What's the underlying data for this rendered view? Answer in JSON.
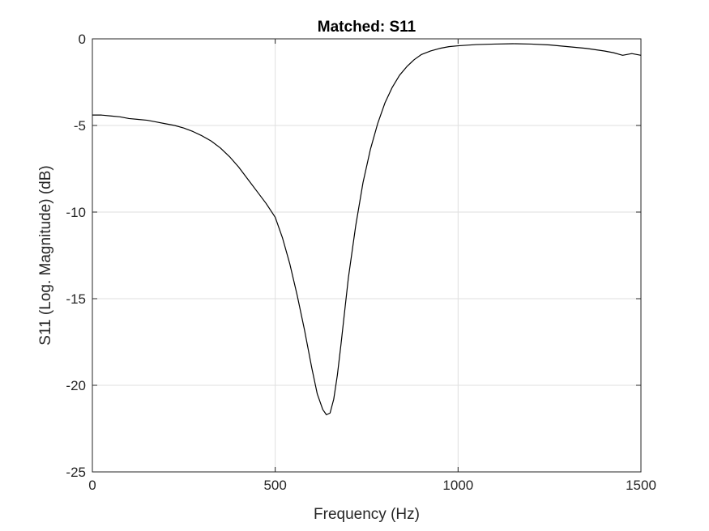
{
  "chart_data": {
    "type": "line",
    "title": "Matched: S11",
    "xlabel": "Frequency (Hz)",
    "ylabel": "S11 (Log. Magnitude) (dB)",
    "xlim": [
      0,
      1500
    ],
    "ylim": [
      -25,
      0
    ],
    "xticks": [
      0,
      500,
      1000,
      1500
    ],
    "yticks": [
      0,
      -5,
      -10,
      -15,
      -20,
      -25
    ],
    "xtick_labels": [
      "0",
      "500",
      "1000",
      "1500"
    ],
    "ytick_labels": [
      "0",
      "-5",
      "-10",
      "-15",
      "-20",
      "-25"
    ],
    "grid": true,
    "series": [
      {
        "color": "#000000",
        "x": [
          0,
          25,
          50,
          75,
          100,
          125,
          150,
          175,
          200,
          225,
          250,
          275,
          300,
          325,
          350,
          375,
          400,
          425,
          450,
          475,
          500,
          520,
          540,
          560,
          580,
          600,
          615,
          630,
          640,
          650,
          660,
          670,
          680,
          690,
          700,
          720,
          740,
          760,
          780,
          800,
          820,
          840,
          860,
          880,
          900,
          925,
          950,
          975,
          1000,
          1050,
          1100,
          1150,
          1200,
          1250,
          1300,
          1350,
          1400,
          1425,
          1450,
          1475,
          1500
        ],
        "y": [
          -4.4,
          -4.4,
          -4.45,
          -4.5,
          -4.6,
          -4.65,
          -4.7,
          -4.8,
          -4.9,
          -5.0,
          -5.15,
          -5.35,
          -5.6,
          -5.9,
          -6.3,
          -6.8,
          -7.4,
          -8.1,
          -8.8,
          -9.5,
          -10.3,
          -11.5,
          -13.0,
          -14.8,
          -16.8,
          -19.0,
          -20.5,
          -21.4,
          -21.7,
          -21.6,
          -20.8,
          -19.4,
          -17.6,
          -15.7,
          -13.8,
          -10.8,
          -8.3,
          -6.4,
          -4.9,
          -3.7,
          -2.8,
          -2.1,
          -1.6,
          -1.2,
          -0.9,
          -0.7,
          -0.55,
          -0.45,
          -0.4,
          -0.33,
          -0.3,
          -0.28,
          -0.3,
          -0.35,
          -0.45,
          -0.55,
          -0.7,
          -0.8,
          -0.95,
          -0.85,
          -0.95
        ]
      }
    ]
  }
}
